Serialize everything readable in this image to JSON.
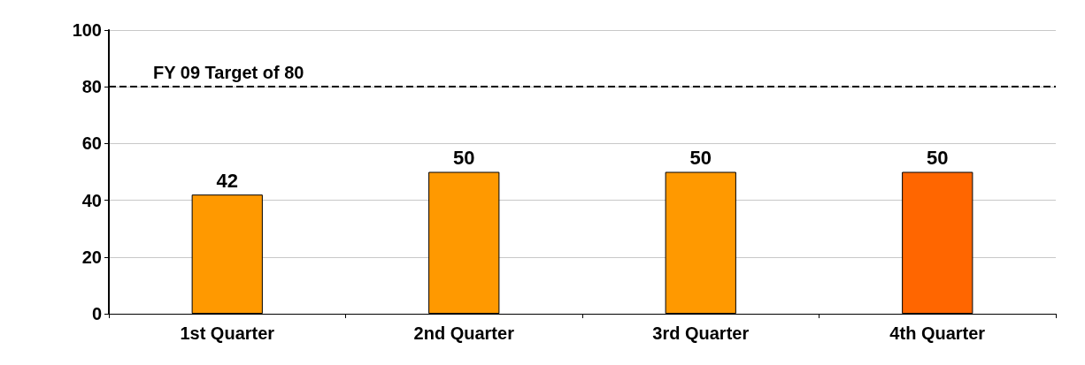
{
  "chart_data": {
    "type": "bar",
    "categories": [
      "1st Quarter",
      "2nd Quarter",
      "3rd Quarter",
      "4th Quarter"
    ],
    "values": [
      42,
      50,
      50,
      50
    ],
    "colors": [
      "#ff9900",
      "#ff9900",
      "#ff9900",
      "#ff6600"
    ],
    "ylim": [
      0,
      100
    ],
    "yticks": [
      0,
      20,
      40,
      60,
      80,
      100
    ],
    "grid": "y",
    "data_labels": true,
    "ref_lines": [
      {
        "axis": "y",
        "value": 80,
        "label": "FY 09 Target of 80",
        "line_style": "dashed",
        "color": "#000000"
      }
    ]
  }
}
